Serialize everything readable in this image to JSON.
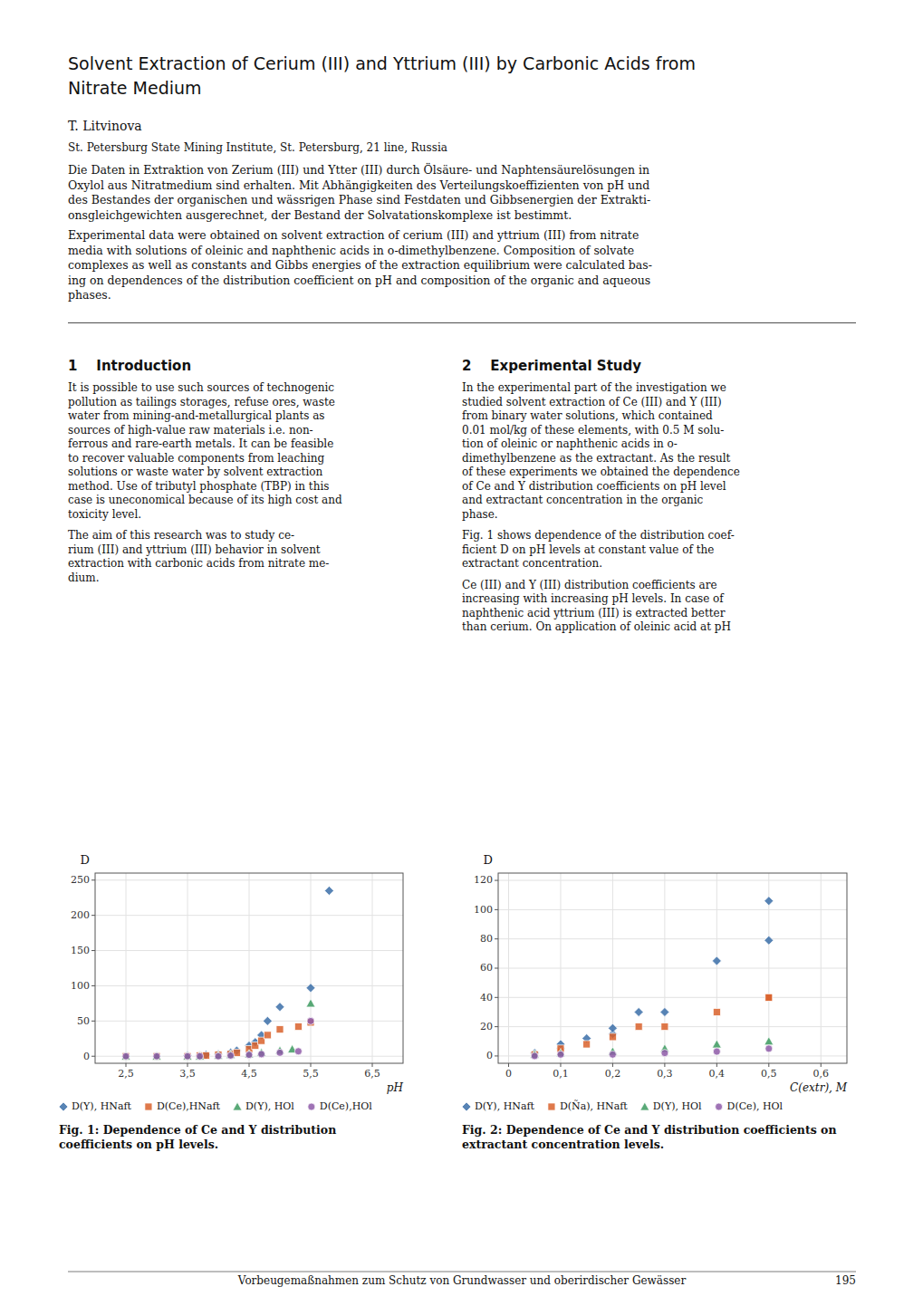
{
  "page": {
    "title_lines": [
      "Solvent Extraction of Cerium (III) and Yttrium (III) by Carbonic Acids from",
      "Nitrate Medium"
    ],
    "author": "T. Litvinova",
    "affiliation": "St. Petersburg State Mining Institute, St. Petersburg, 21 line, Russia",
    "abstract_de_lines": [
      "Die Daten in Extraktion von Zerium (III) und Ytter (III) durch Ölsäure- und Naphtensäurelösungen in",
      "Oxylol aus Nitratmedium sind erhalten. Mit Abhängigkeiten des Verteilungskoeffizienten von pH und",
      "des Bestandes der organischen und wässrigen Phase sind Festdaten und Gibbsenergien der Extrakti-",
      "onsgleichgewichten ausgerechnet, der Bestand der Solvatationskomplexe ist bestimmt."
    ],
    "abstract_en_lines": [
      "Experimental data were obtained on solvent extraction of cerium (III) and yttrium (III) from nitrate",
      "media with solutions of oleinic and naphthenic acids in o-dimethylbenzene. Composition of solvate",
      "complexes as well as constants and Gibbs energies of the extraction equilibrium were calculated bas-",
      "ing on dependences of the distribution coefficient on pH and composition of the organic and aqueous",
      "phases."
    ],
    "sections": [
      {
        "title": "1    Introduction",
        "paragraphs": [
          [
            "It is possible to use such sources of technogenic",
            "pollution as tailings storages, refuse ores, waste",
            "water from mining-and-metallurgical plants as",
            "sources of high-value raw materials i.e. non-",
            "ferrous and rare-earth metals. It can be feasible",
            "to recover valuable components from leaching",
            "solutions or waste water by solvent extraction",
            "method. Use of tributyl phosphate (TBP) in this",
            "case is uneconomical because of its high cost and",
            "toxicity level."
          ],
          [
            "The aim of this research was to study ce-",
            "rium (III) and yttrium (III) behavior in solvent",
            "extraction with carbonic acids from nitrate me-",
            "dium."
          ]
        ]
      },
      {
        "title": "2    Experimental Study",
        "paragraphs": [
          [
            "In the experimental part of the investigation we",
            "studied solvent extraction of Ce (III) and Y (III)",
            "from binary water solutions, which contained",
            "0.01 mol/kg of these elements, with 0.5 M solu-",
            "tion of oleinic or naphthenic acids in o-",
            "dimethylbenzene as the extractant. As the result",
            "of these experiments we obtained the dependence",
            "of Ce and Y distribution coefficients on pH level",
            "and extractant concentration in the organic",
            "phase."
          ],
          [
            "Fig. 1 shows dependence of the distribution coef-",
            "ficient D on pH levels at constant value of the",
            "extractant concentration."
          ],
          [
            "Ce (III) and Y (III) distribution coefficients are",
            "increasing with increasing pH levels. In case of",
            "naphthenic acid yttrium (III) is extracted better",
            "than cerium. On application of oleinic acid at pH"
          ]
        ]
      }
    ],
    "footer_text": "Vorbeugemaßnahmen zum Schutz von Grundwasser und oberirdischer Gewässer",
    "footer_page": "195"
  },
  "chart_data": [
    {
      "type": "scatter",
      "title": "Fig. 1: Dependence of Ce and Y distribution coefficients on pH levels.",
      "x_label": "pH",
      "y_label": "D",
      "xlim": [
        2.0,
        7.0
      ],
      "ylim": [
        -10,
        260
      ],
      "xticks": [
        {
          "value": 2.5,
          "label": "2,5"
        },
        {
          "value": 3.5,
          "label": "3,5"
        },
        {
          "value": 4.5,
          "label": "4,5"
        },
        {
          "value": 5.5,
          "label": "5,5"
        },
        {
          "value": 6.5,
          "label": "6,5"
        }
      ],
      "yticks": [
        0,
        50,
        100,
        150,
        200,
        250
      ],
      "grid": true,
      "legend": "bottom",
      "series": [
        {
          "name": "D(Y), HNaft",
          "marker": "diamond",
          "color": "#3b6ea8",
          "x": [
            2.5,
            3.0,
            3.5,
            3.7,
            3.8,
            4.0,
            4.2,
            4.3,
            4.5,
            4.6,
            4.7,
            4.8,
            5.0,
            5.5,
            5.8
          ],
          "values": [
            0,
            0,
            1,
            1,
            2,
            3,
            5,
            8,
            15,
            20,
            30,
            50,
            70,
            97,
            235
          ]
        },
        {
          "name": "D(Ce),HNaft",
          "marker": "square",
          "color": "#d9622b",
          "x": [
            2.5,
            3.0,
            3.5,
            3.7,
            3.8,
            4.0,
            4.2,
            4.3,
            4.5,
            4.6,
            4.7,
            4.8,
            5.0,
            5.3,
            5.5
          ],
          "values": [
            0,
            0,
            0,
            1,
            1,
            2,
            3,
            5,
            10,
            15,
            22,
            30,
            38,
            42,
            48
          ]
        },
        {
          "name": "D(Y), HOl",
          "marker": "triangle",
          "color": "#3c9a5f",
          "x": [
            2.5,
            3.0,
            3.5,
            3.7,
            4.0,
            4.2,
            4.5,
            4.7,
            5.0,
            5.2,
            5.5
          ],
          "values": [
            0,
            0,
            0,
            0,
            1,
            2,
            3,
            5,
            8,
            10,
            75
          ]
        },
        {
          "name": "D(Ce),HOl",
          "marker": "circle",
          "color": "#8e5aa8",
          "x": [
            2.5,
            3.0,
            3.5,
            3.7,
            4.0,
            4.2,
            4.5,
            4.7,
            5.0,
            5.3,
            5.5
          ],
          "values": [
            0,
            0,
            0,
            0,
            0,
            1,
            2,
            3,
            5,
            7,
            50
          ]
        }
      ]
    },
    {
      "type": "scatter",
      "title": "Fig. 2: Dependence of Ce and Y distribution coefficients on extractant concentration levels.",
      "x_label": "C(extr), M",
      "y_label": "D",
      "xlim": [
        -0.02,
        0.65
      ],
      "ylim": [
        -5,
        125
      ],
      "xticks": [
        0,
        {
          "value": 0.1,
          "label": "0,1"
        },
        {
          "value": 0.2,
          "label": "0,2"
        },
        {
          "value": 0.3,
          "label": "0,3"
        },
        {
          "value": 0.4,
          "label": "0,4"
        },
        {
          "value": 0.5,
          "label": "0,5"
        },
        {
          "value": 0.6,
          "label": "0,6"
        }
      ],
      "yticks": [
        0,
        20,
        40,
        60,
        80,
        100,
        120
      ],
      "grid": true,
      "legend": "bottom",
      "series": [
        {
          "name": "D(Y), HNaft",
          "marker": "diamond",
          "color": "#3b6ea8",
          "x": [
            0.05,
            0.1,
            0.1,
            0.15,
            0.2,
            0.2,
            0.25,
            0.3,
            0.4,
            0.5,
            0.5
          ],
          "values": [
            2,
            5,
            8,
            12,
            15,
            19,
            30,
            30,
            65,
            79,
            106
          ]
        },
        {
          "name": "D(Ña), HNaft",
          "marker": "square",
          "color": "#d9622b",
          "x": [
            0.05,
            0.1,
            0.1,
            0.15,
            0.2,
            0.25,
            0.3,
            0.4,
            0.5,
            0.5
          ],
          "values": [
            1,
            3,
            5,
            8,
            13,
            20,
            20,
            30,
            40,
            40
          ]
        },
        {
          "name": "D(Y), HOl",
          "marker": "triangle",
          "color": "#3c9a5f",
          "x": [
            0.05,
            0.1,
            0.2,
            0.3,
            0.4,
            0.5
          ],
          "values": [
            1,
            2,
            3,
            5,
            8,
            10
          ]
        },
        {
          "name": "D(Ce), HOl",
          "marker": "circle",
          "color": "#8e5aa8",
          "x": [
            0.05,
            0.1,
            0.2,
            0.3,
            0.4,
            0.5
          ],
          "values": [
            0,
            1,
            1,
            2,
            3,
            5
          ]
        }
      ]
    }
  ]
}
